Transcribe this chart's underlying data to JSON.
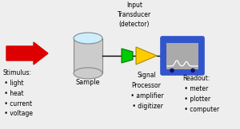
{
  "bg_color": "#eeeeee",
  "arrow_color": "#dd0000",
  "cylinder_face_color": "#cccccc",
  "cylinder_top_color": "#cceeff",
  "green_box_color": "#00cc00",
  "yellow_triangle_color": "#ffcc00",
  "blue_screen_color": "#3355cc",
  "screen_bg_color": "#aaaaaa",
  "line_color": "#000000",
  "stimulus_label": "Stimulus:\n • light\n • heat\n • current\n • voltage",
  "sample_label": "Sample",
  "transducer_label": "Input\nTransducer\n(detector)",
  "processor_label": "Signal\nProcessor\n • amplifier\n • digitizer",
  "readout_label": "Readout:\n • meter\n • plotter\n • computer"
}
